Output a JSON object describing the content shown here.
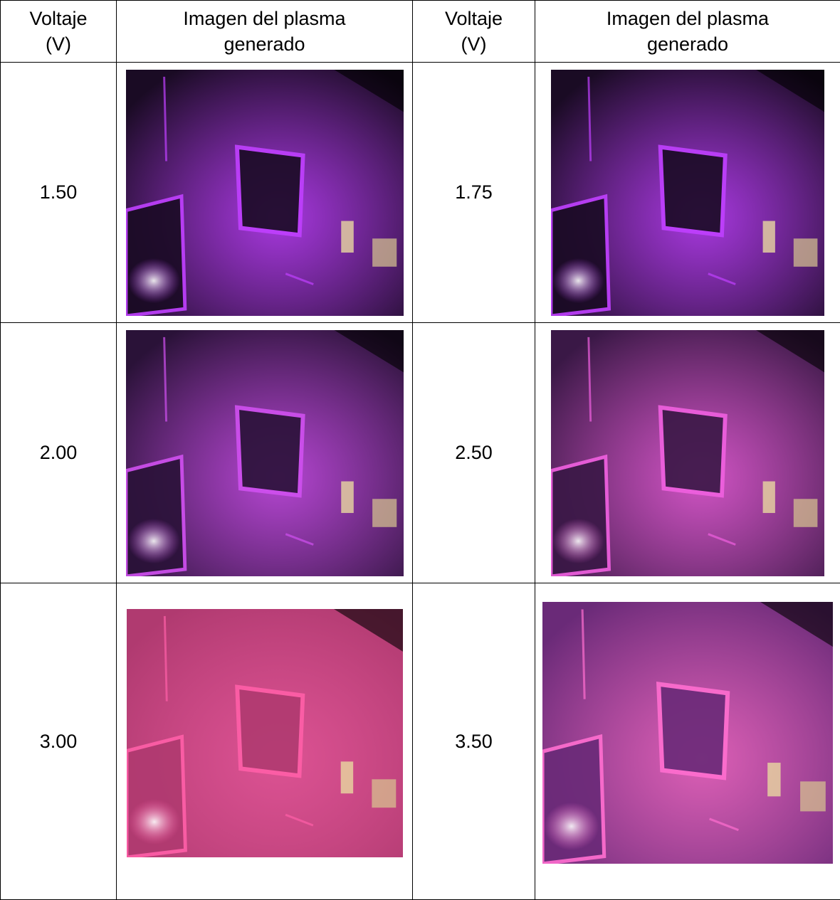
{
  "table": {
    "headers": [
      "Voltaje (V)",
      "Imagen del plasma generado",
      "Voltaje (V)",
      "Imagen del plasma generado"
    ],
    "header_lines": {
      "voltage": [
        "Voltaje",
        "(V)"
      ],
      "image": [
        "Imagen del plasma",
        "generado"
      ]
    },
    "rows": [
      {
        "left_voltage": "1.50",
        "right_voltage": "1.75"
      },
      {
        "left_voltage": "2.00",
        "right_voltage": "2.50"
      },
      {
        "left_voltage": "3.00",
        "right_voltage": "3.50"
      }
    ]
  },
  "photos": [
    {
      "voltage": "1.50",
      "glow": "#c040ff",
      "bg": "#1a0b24"
    },
    {
      "voltage": "1.75",
      "glow": "#c040ff",
      "bg": "#1a0b24"
    },
    {
      "voltage": "2.00",
      "glow": "#d050f0",
      "bg": "#2a1238"
    },
    {
      "voltage": "2.50",
      "glow": "#f060e0",
      "bg": "#3a1846"
    },
    {
      "voltage": "3.00",
      "glow": "#ff5fa8",
      "bg": "#b03a70"
    },
    {
      "voltage": "3.50",
      "glow": "#ff6ed0",
      "bg": "#6a2a78"
    }
  ]
}
